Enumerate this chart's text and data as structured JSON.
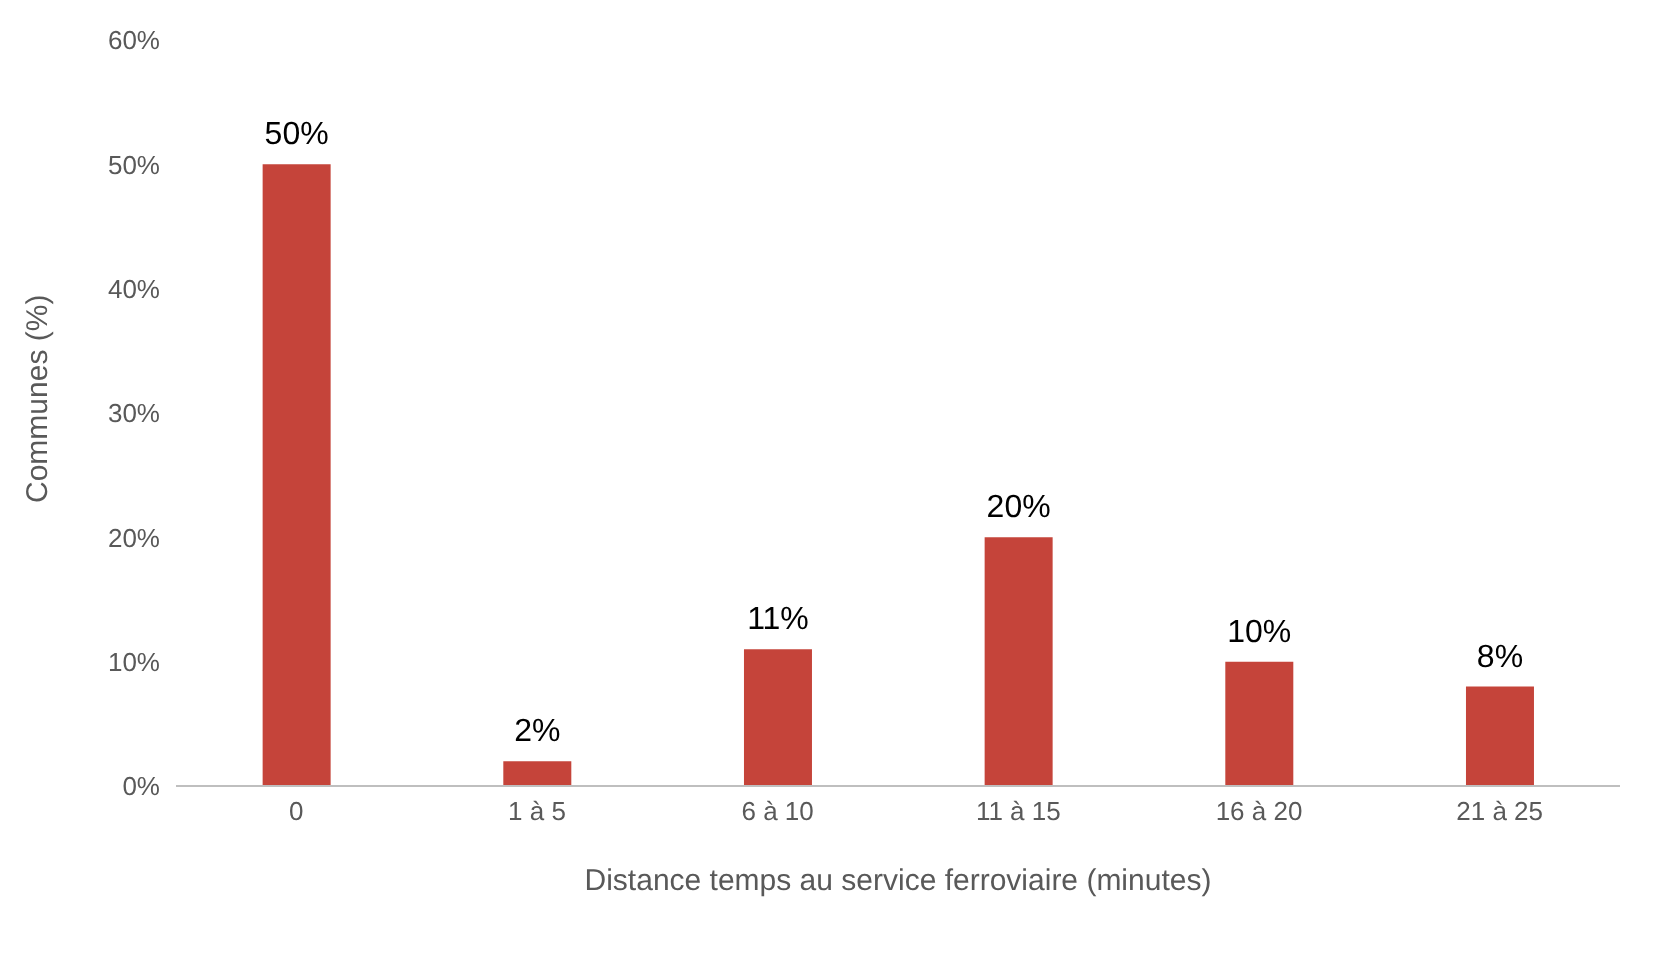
{
  "chart_data": {
    "type": "bar",
    "xlabel": "Distance temps au service ferroviaire (minutes)",
    "ylabel": "Communes (%)",
    "categories": [
      "0",
      "1 à 5",
      "6 à 10",
      "11 à 15",
      "16 à 20",
      "21 à 25"
    ],
    "values": [
      50,
      2,
      11,
      20,
      10,
      8
    ],
    "value_labels": [
      "50%",
      "2%",
      "11%",
      "20%",
      "10%",
      "8%"
    ],
    "color": "#c5443a",
    "ylim": [
      0,
      60
    ],
    "yticks": [
      {
        "value": 0,
        "label": "0%"
      },
      {
        "value": 10,
        "label": "10%"
      },
      {
        "value": 20,
        "label": "20%"
      },
      {
        "value": 30,
        "label": "30%"
      },
      {
        "value": 40,
        "label": "40%"
      },
      {
        "value": 50,
        "label": "50%"
      },
      {
        "value": 60,
        "label": "60%"
      }
    ],
    "grid": false,
    "legend": false
  }
}
